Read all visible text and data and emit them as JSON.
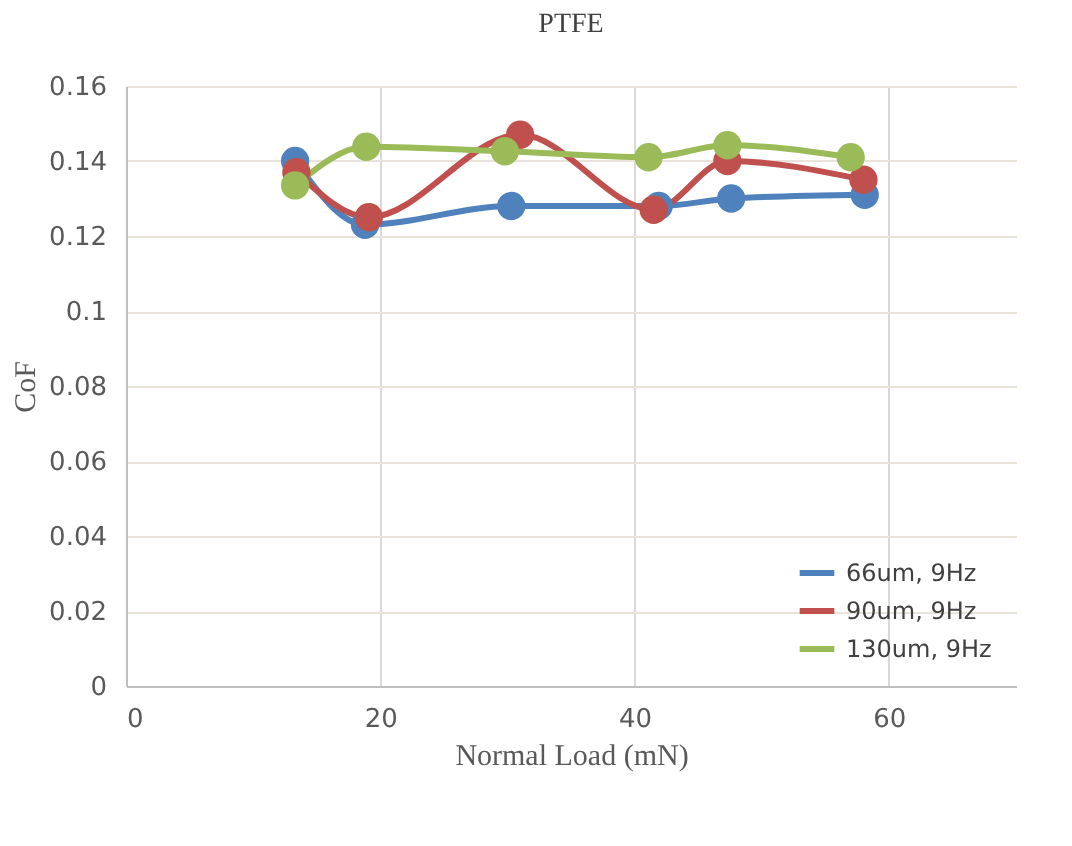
{
  "chart_data": {
    "type": "line",
    "title": "PTFE",
    "xlabel": "Normal Load (mN)",
    "ylabel": "CoF",
    "xlim": [
      0,
      70
    ],
    "xticks": [
      0,
      20,
      40,
      60
    ],
    "ylim": [
      0,
      0.16
    ],
    "yticks": [
      0,
      0.02,
      0.04,
      0.06,
      0.08,
      0.1,
      0.12,
      0.14,
      0.16
    ],
    "grid": true,
    "legend": "bottom right",
    "marker": "circle",
    "line_style": "solid",
    "series": [
      {
        "name": "66um, 9Hz",
        "color": "#4f81bd",
        "x": [
          13.3,
          18.8,
          30.3,
          41.9,
          47.6,
          58.1
        ],
        "values": [
          0.14,
          0.123,
          0.128,
          0.128,
          0.13,
          0.131
        ]
      },
      {
        "name": "90um, 9Hz",
        "color": "#c0504d",
        "x": [
          13.4,
          19.1,
          31.0,
          41.5,
          47.3,
          58.0
        ],
        "values": [
          0.137,
          0.125,
          0.147,
          0.127,
          0.14,
          0.135
        ]
      },
      {
        "name": "130um, 9Hz",
        "color": "#9bbb59",
        "x": [
          13.3,
          18.9,
          29.8,
          41.1,
          47.3,
          57.0
        ],
        "values": [
          0.1335,
          0.1438,
          0.1426,
          0.141,
          0.1442,
          0.141
        ]
      }
    ]
  }
}
